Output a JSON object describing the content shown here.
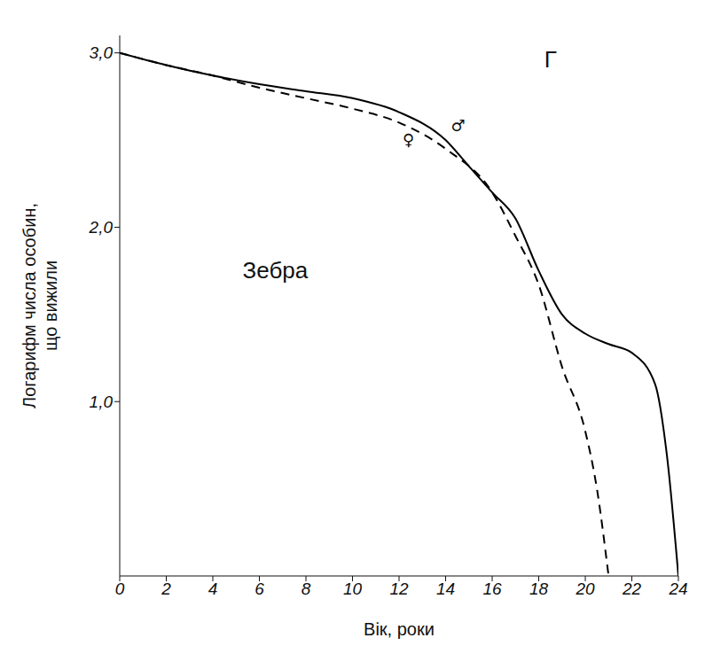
{
  "chart_data": {
    "type": "line",
    "panel": "Г",
    "annotation": "Зебра",
    "x_label": "Вік, роки",
    "y_label": "Логарифм числа особин, що вижили",
    "xlim": [
      0,
      24
    ],
    "xticks": [
      0,
      2,
      4,
      6,
      8,
      10,
      12,
      14,
      16,
      18,
      20,
      22,
      24
    ],
    "ylim": [
      0,
      3.1
    ],
    "yticks": [
      {
        "value": 1,
        "label": "1,0"
      },
      {
        "value": 2,
        "label": "2,0"
      },
      {
        "value": 3,
        "label": "3,0"
      }
    ],
    "grid": false,
    "series": [
      {
        "name": "♂",
        "color": "#000000",
        "line_style": "solid",
        "x": [
          0,
          2,
          4,
          6,
          8,
          10,
          12,
          14,
          15,
          16,
          17,
          18,
          19,
          20,
          21,
          22,
          23,
          23.5,
          24
        ],
        "values": [
          3.0,
          2.93,
          2.87,
          2.82,
          2.78,
          2.74,
          2.66,
          2.5,
          2.35,
          2.2,
          2.05,
          1.75,
          1.5,
          1.39,
          1.33,
          1.28,
          1.1,
          0.7,
          0
        ]
      },
      {
        "name": "♀",
        "color": "#000000",
        "line_style": "dashed",
        "x": [
          0,
          2,
          4,
          6,
          8,
          10,
          12,
          14,
          16,
          17,
          18,
          19,
          20,
          20.5,
          21
        ],
        "values": [
          3.0,
          2.93,
          2.87,
          2.8,
          2.74,
          2.68,
          2.6,
          2.45,
          2.2,
          1.95,
          1.67,
          1.2,
          0.83,
          0.5,
          0
        ]
      }
    ]
  }
}
